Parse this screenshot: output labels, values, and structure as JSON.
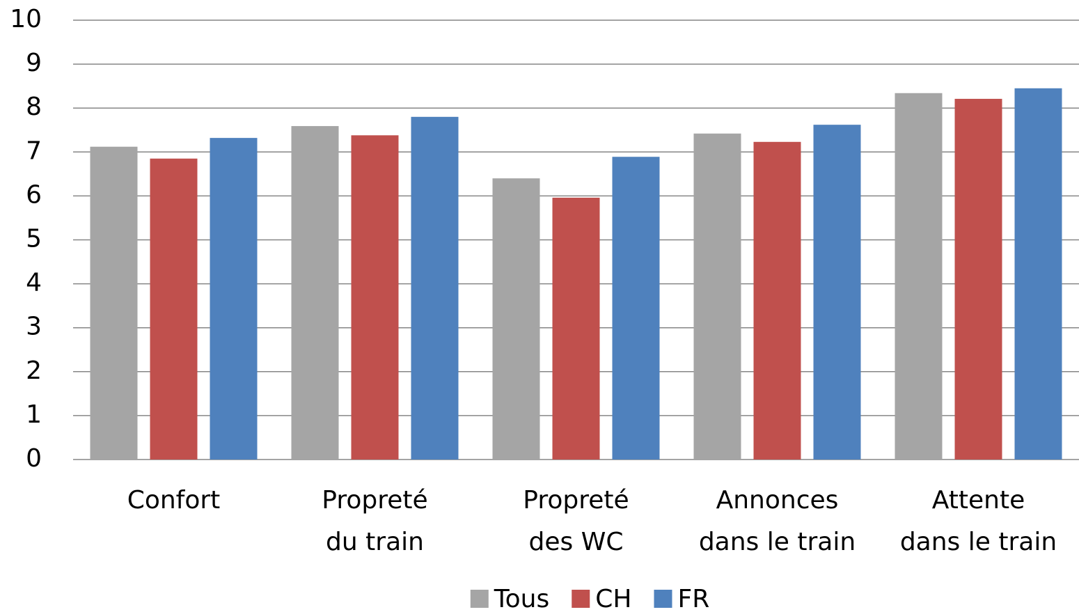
{
  "chart_data": {
    "type": "bar",
    "categories": [
      [
        "Confort"
      ],
      [
        "Propreté",
        "du train"
      ],
      [
        "Propreté",
        "des WC"
      ],
      [
        "Annonces",
        "dans le train"
      ],
      [
        "Attente",
        "dans le train"
      ]
    ],
    "series": [
      {
        "name": "Tous",
        "color": "#a5a5a5",
        "values": [
          7.12,
          7.59,
          6.4,
          7.42,
          8.34
        ]
      },
      {
        "name": "CH",
        "color": "#c0504d",
        "values": [
          6.85,
          7.38,
          5.96,
          7.23,
          8.21
        ]
      },
      {
        "name": "FR",
        "color": "#4f81bd",
        "values": [
          7.32,
          7.8,
          6.89,
          7.62,
          8.45
        ]
      }
    ],
    "ylim": [
      0,
      10
    ],
    "yticks": [
      0,
      1,
      2,
      3,
      4,
      5,
      6,
      7,
      8,
      9,
      10
    ],
    "grid": true,
    "legend": "bottom"
  }
}
